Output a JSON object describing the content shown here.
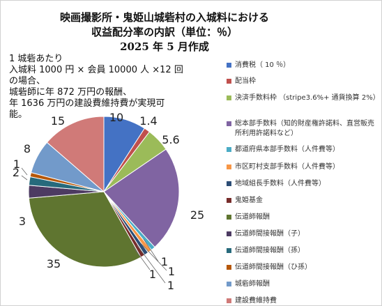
{
  "chart_data": {
    "type": "pie",
    "title_lines": [
      "映画撮影所・鬼姫山城砦村の入城料における",
      "収益配分率の内訳（単位：％）",
      "2025 年 5 月作成"
    ],
    "annotation_lines": [
      "1 城砦あたり",
      "入城料 1000 円 × 会員 10000 人 ×12 回",
      "の場合、",
      "城砦師に年 872 万円の報酬、",
      "年 1636 万円の建設費維持費が実現可",
      "能。"
    ],
    "legend_position": "right",
    "slices": [
      {
        "label": "消費税（ 10 ％）",
        "value": 10,
        "color": "#4472c4"
      },
      {
        "label": "配当枠",
        "value": 1.4,
        "color": "#c0504d"
      },
      {
        "label": "決済手数料枠 （stripe3.6%+ 通貨換算 2%）",
        "value": 5.6,
        "color": "#9bbb59"
      },
      {
        "label": "総本部手数料（知的財産権許諾料、直営販売所利用許諾料など）",
        "value": 25,
        "color": "#8064a2"
      },
      {
        "label": "都道府県本部手数料（人件費等）",
        "value": 1,
        "color": "#4bacc6"
      },
      {
        "label": "市区町村支部手数料（人件費等）",
        "value": 1,
        "color": "#f79646"
      },
      {
        "label": "地域組長手数料（人件費等）",
        "value": 1,
        "color": "#2c4d75"
      },
      {
        "label": "鬼姫基金",
        "value": 1,
        "color": "#772c2a"
      },
      {
        "label": "伝道師報酬",
        "value": 35,
        "color": "#5f7530"
      },
      {
        "label": "伝道師間接報酬（子）",
        "value": 3,
        "color": "#4d3b62"
      },
      {
        "label": "伝道師間接報酬（孫）",
        "value": 2,
        "color": "#276a7c"
      },
      {
        "label": "伝道師間接報酬（ひ孫）",
        "value": 1,
        "color": "#b65708"
      },
      {
        "label": "城砦師報酬",
        "value": 8,
        "color": "#729aca"
      },
      {
        "label": "建設費維持費",
        "value": 15,
        "color": "#d07a78"
      }
    ]
  }
}
